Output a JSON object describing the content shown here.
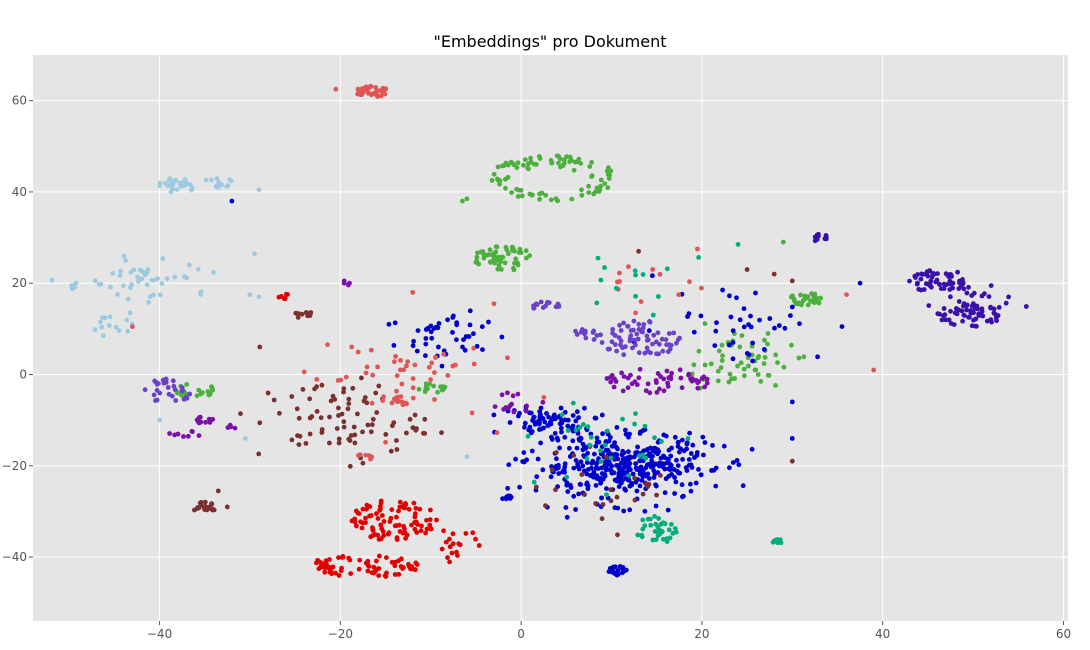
{
  "chart_data": {
    "type": "scatter",
    "title": "\"Embeddings\" pro Dokument",
    "xlabel": "",
    "ylabel": "",
    "xlim": [
      -54,
      60.5
    ],
    "ylim": [
      -54,
      70
    ],
    "xticks": [
      -40,
      -20,
      0,
      20,
      40,
      60
    ],
    "yticks": [
      -40,
      -20,
      0,
      20,
      40,
      60
    ],
    "grid": true,
    "style": "ggplot",
    "colors": {
      "background": "#e5e5e5",
      "grid": "#ffffff"
    },
    "clusters": [
      {
        "color": "#e05555",
        "center": [
          -16.5,
          62
        ],
        "spread": [
          1.8,
          1.2
        ],
        "n": 45,
        "shape": "uniform"
      },
      {
        "color": "#4caf3e",
        "center": [
          3.5,
          43
        ],
        "spread": [
          7,
          5
        ],
        "n": 90,
        "shape": "ring"
      },
      {
        "color": "#4caf3e",
        "center": [
          -2,
          25.5
        ],
        "spread": [
          3.2,
          2.8
        ],
        "n": 55,
        "shape": "uniform"
      },
      {
        "color": "#9ecae1",
        "center": [
          -38,
          41.5
        ],
        "spread": [
          2.2,
          1.6
        ],
        "n": 28,
        "shape": "uniform"
      },
      {
        "color": "#9ecae1",
        "center": [
          -33.5,
          42
        ],
        "spread": [
          1.8,
          1.2
        ],
        "n": 14,
        "shape": "uniform"
      },
      {
        "color": "#9ecae1",
        "center": [
          -40.5,
          21
        ],
        "spread": [
          7,
          5
        ],
        "n": 45,
        "shape": "gauss"
      },
      {
        "color": "#9ecae1",
        "center": [
          -45,
          11
        ],
        "spread": [
          2.5,
          2.5
        ],
        "n": 14,
        "shape": "gauss"
      },
      {
        "color": "#9ecae1",
        "center": [
          -49.5,
          19.5
        ],
        "spread": [
          0.6,
          1
        ],
        "n": 8,
        "shape": "gauss"
      },
      {
        "color": "#3a10a8",
        "center": [
          46,
          20.5
        ],
        "spread": [
          3.2,
          2.8
        ],
        "n": 55,
        "shape": "uniform"
      },
      {
        "color": "#3a10a8",
        "center": [
          49.5,
          13
        ],
        "spread": [
          3.5,
          2.6
        ],
        "n": 55,
        "shape": "uniform"
      },
      {
        "color": "#3a10a8",
        "center": [
          50,
          16
        ],
        "spread": [
          5,
          5
        ],
        "n": 20,
        "shape": "gauss"
      },
      {
        "color": "#3a10a8",
        "center": [
          33,
          30
        ],
        "spread": [
          0.9,
          0.9
        ],
        "n": 12,
        "shape": "uniform"
      },
      {
        "color": "#4caf3e",
        "center": [
          31.5,
          16.5
        ],
        "spread": [
          1.8,
          1.6
        ],
        "n": 30,
        "shape": "uniform"
      },
      {
        "color": "#4caf3e",
        "center": [
          24,
          3
        ],
        "spread": [
          6,
          6
        ],
        "n": 55,
        "shape": "gauss"
      },
      {
        "color": "#4caf3e",
        "center": [
          -36,
          -3.5
        ],
        "spread": [
          2.2,
          1.6
        ],
        "n": 22,
        "shape": "uniform"
      },
      {
        "color": "#4caf3e",
        "center": [
          -10,
          -3
        ],
        "spread": [
          1.6,
          1.2
        ],
        "n": 14,
        "shape": "uniform"
      },
      {
        "color": "#0000cc",
        "center": [
          11,
          -20
        ],
        "spread": [
          10,
          7.5
        ],
        "n": 400,
        "shape": "gauss"
      },
      {
        "color": "#0000cc",
        "center": [
          3,
          -10
        ],
        "spread": [
          5,
          3
        ],
        "n": 70,
        "shape": "gauss"
      },
      {
        "color": "#0000cc",
        "center": [
          -8,
          8
        ],
        "spread": [
          7,
          7
        ],
        "n": 45,
        "shape": "gauss"
      },
      {
        "color": "#0000cc",
        "center": [
          24,
          12
        ],
        "spread": [
          9,
          9
        ],
        "n": 40,
        "shape": "gauss"
      },
      {
        "color": "#0000cc",
        "center": [
          10.5,
          -43
        ],
        "spread": [
          1.4,
          1
        ],
        "n": 22,
        "shape": "uniform"
      },
      {
        "color": "#0000cc",
        "center": [
          -1.5,
          -27
        ],
        "spread": [
          0.8,
          0.6
        ],
        "n": 9,
        "shape": "uniform"
      },
      {
        "color": "#e00000",
        "center": [
          -14,
          -32
        ],
        "spread": [
          5,
          4.5
        ],
        "n": 90,
        "shape": "uniform"
      },
      {
        "color": "#e00000",
        "center": [
          -20,
          -42
        ],
        "spread": [
          3.2,
          2.2
        ],
        "n": 35,
        "shape": "uniform"
      },
      {
        "color": "#e00000",
        "center": [
          -14.5,
          -42
        ],
        "spread": [
          3.2,
          2.5
        ],
        "n": 35,
        "shape": "uniform"
      },
      {
        "color": "#e00000",
        "center": [
          -7,
          -37
        ],
        "spread": [
          3,
          3
        ],
        "n": 18,
        "shape": "gauss"
      },
      {
        "color": "#e00000",
        "center": [
          -26,
          17
        ],
        "spread": [
          1,
          0.6
        ],
        "n": 6,
        "shape": "uniform"
      },
      {
        "color": "#6a42c8",
        "center": [
          -39,
          -3.5
        ],
        "spread": [
          2.8,
          2.6
        ],
        "n": 30,
        "shape": "uniform"
      },
      {
        "color": "#6a42c8",
        "center": [
          13,
          8
        ],
        "spread": [
          5,
          4
        ],
        "n": 70,
        "shape": "uniform"
      },
      {
        "color": "#6a42c8",
        "center": [
          2.5,
          15
        ],
        "spread": [
          2,
          1.2
        ],
        "n": 16,
        "shape": "uniform"
      },
      {
        "color": "#6a42c8",
        "center": [
          7,
          9
        ],
        "spread": [
          1.3,
          1
        ],
        "n": 10,
        "shape": "uniform"
      },
      {
        "color": "#7b0fa8",
        "center": [
          15,
          -1.5
        ],
        "spread": [
          6,
          2.8
        ],
        "n": 55,
        "shape": "uniform"
      },
      {
        "color": "#7b0fa8",
        "center": [
          -35,
          -10
        ],
        "spread": [
          1,
          0.8
        ],
        "n": 10,
        "shape": "uniform"
      },
      {
        "color": "#7b0fa8",
        "center": [
          -37,
          -13
        ],
        "spread": [
          2.5,
          0.6
        ],
        "n": 8,
        "shape": "uniform"
      },
      {
        "color": "#7b0fa8",
        "center": [
          -1,
          -6
        ],
        "spread": [
          2.5,
          2.5
        ],
        "n": 14,
        "shape": "gauss"
      },
      {
        "color": "#7b0fa8",
        "center": [
          -31.5,
          -11.5
        ],
        "spread": [
          1,
          0.6
        ],
        "n": 5,
        "shape": "uniform"
      },
      {
        "color": "#7b0fa8",
        "center": [
          -19.5,
          20
        ],
        "spread": [
          0.6,
          0.6
        ],
        "n": 4,
        "shape": "uniform"
      },
      {
        "color": "#7b3030",
        "center": [
          -35,
          -29
        ],
        "spread": [
          1.4,
          1.2
        ],
        "n": 20,
        "shape": "uniform"
      },
      {
        "color": "#7b3030",
        "center": [
          -20,
          -10
        ],
        "spread": [
          9,
          9
        ],
        "n": 85,
        "shape": "gauss"
      },
      {
        "color": "#7b3030",
        "center": [
          10,
          -25
        ],
        "spread": [
          8,
          8
        ],
        "n": 25,
        "shape": "gauss"
      },
      {
        "color": "#7b3030",
        "center": [
          -24,
          13
        ],
        "spread": [
          1.2,
          0.8
        ],
        "n": 8,
        "shape": "uniform"
      },
      {
        "color": "#e05555",
        "center": [
          -13.5,
          -6
        ],
        "spread": [
          1,
          0.8
        ],
        "n": 10,
        "shape": "uniform"
      },
      {
        "color": "#e05555",
        "center": [
          -14,
          0
        ],
        "spread": [
          10,
          10
        ],
        "n": 50,
        "shape": "gauss"
      },
      {
        "color": "#e05555",
        "center": [
          12,
          20
        ],
        "spread": [
          8,
          6
        ],
        "n": 12,
        "shape": "gauss"
      },
      {
        "color": "#e05555",
        "center": [
          -17,
          -18
        ],
        "spread": [
          1.2,
          0.6
        ],
        "n": 6,
        "shape": "uniform"
      },
      {
        "color": "#00ad7c",
        "center": [
          15,
          -34
        ],
        "spread": [
          2.5,
          3
        ],
        "n": 35,
        "shape": "uniform"
      },
      {
        "color": "#00ad7c",
        "center": [
          28.5,
          -36.5
        ],
        "spread": [
          0.8,
          0.4
        ],
        "n": 8,
        "shape": "uniform"
      },
      {
        "color": "#00ad7c",
        "center": [
          10,
          -15
        ],
        "spread": [
          8,
          10
        ],
        "n": 30,
        "shape": "gauss"
      },
      {
        "color": "#00ad7c",
        "center": [
          10,
          20
        ],
        "spread": [
          10,
          8
        ],
        "n": 12,
        "shape": "gauss"
      }
    ],
    "points": [
      {
        "x": -20.5,
        "y": 62.5,
        "color": "#e05555"
      },
      {
        "x": -6.5,
        "y": 38,
        "color": "#4caf3e"
      },
      {
        "x": -6,
        "y": 38.5,
        "color": "#4caf3e"
      },
      {
        "x": -43,
        "y": 10.5,
        "color": "#e05555"
      },
      {
        "x": -29,
        "y": 40.5,
        "color": "#9ecae1"
      },
      {
        "x": -32,
        "y": 38,
        "color": "#0000cc"
      },
      {
        "x": -29.5,
        "y": 26.5,
        "color": "#9ecae1"
      },
      {
        "x": -30,
        "y": 17.5,
        "color": "#9ecae1"
      },
      {
        "x": -29,
        "y": 17,
        "color": "#9ecae1"
      },
      {
        "x": -40,
        "y": -10,
        "color": "#9ecae1"
      },
      {
        "x": -30.5,
        "y": -14,
        "color": "#9ecae1"
      },
      {
        "x": -6,
        "y": -18,
        "color": "#9ecae1"
      },
      {
        "x": 39,
        "y": 1,
        "color": "#e05555"
      },
      {
        "x": 36,
        "y": 17.5,
        "color": "#e05555"
      },
      {
        "x": 37.5,
        "y": 20,
        "color": "#0000cc"
      },
      {
        "x": 35.5,
        "y": 10.5,
        "color": "#0000cc"
      },
      {
        "x": 30,
        "y": -19,
        "color": "#7b3030"
      },
      {
        "x": 30,
        "y": -14,
        "color": "#0000cc"
      },
      {
        "x": 30,
        "y": -6,
        "color": "#0000cc"
      },
      {
        "x": 19.5,
        "y": 27.5,
        "color": "#e05555"
      },
      {
        "x": 24,
        "y": 28.5,
        "color": "#00ad7c"
      },
      {
        "x": 8.5,
        "y": 25.5,
        "color": "#00ad7c"
      },
      {
        "x": 13,
        "y": 27,
        "color": "#7b3030"
      },
      {
        "x": 29,
        "y": 29,
        "color": "#4caf3e"
      },
      {
        "x": 28,
        "y": 22,
        "color": "#7b3030"
      },
      {
        "x": 30,
        "y": 20.5,
        "color": "#7b3030"
      },
      {
        "x": 25,
        "y": 23,
        "color": "#7b3030"
      },
      {
        "x": -33.5,
        "y": -25.5,
        "color": "#7b3030"
      },
      {
        "x": -32.5,
        "y": -29,
        "color": "#7b3030"
      },
      {
        "x": -3,
        "y": 15.5,
        "color": "#e05555"
      },
      {
        "x": -12,
        "y": 18,
        "color": "#e05555"
      }
    ]
  }
}
